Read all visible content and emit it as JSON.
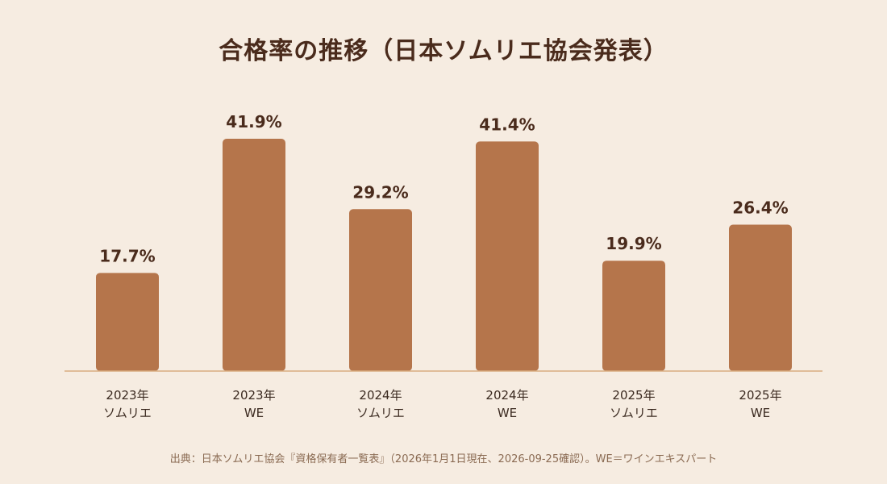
{
  "title": "合格率の推移（日本ソムリエ協会発表）",
  "footnote": "出典：日本ソムリエ協会『資格保有者一覧表』（2026年1月1日現在、2026-09-25確認）。WE＝ワインエキスパート",
  "colors": {
    "background": "#f6ece1",
    "bar": "#b5754b",
    "text": "#4a2b1c",
    "axis": "#d8ab80"
  },
  "chart_data": {
    "type": "bar",
    "categories": [
      [
        "2023年",
        "ソムリエ"
      ],
      [
        "2023年",
        "WE"
      ],
      [
        "2024年",
        "ソムリエ"
      ],
      [
        "2024年",
        "WE"
      ],
      [
        "2025年",
        "ソムリエ"
      ],
      [
        "2025年",
        "WE"
      ]
    ],
    "values": [
      17.7,
      41.9,
      29.2,
      41.4,
      19.9,
      26.4
    ],
    "value_labels": [
      "17.7%",
      "41.9%",
      "29.2%",
      "41.4%",
      "19.9%",
      "26.4%"
    ],
    "unit": "%",
    "ylim": [
      0,
      45
    ],
    "grid": false,
    "legend": "none"
  }
}
